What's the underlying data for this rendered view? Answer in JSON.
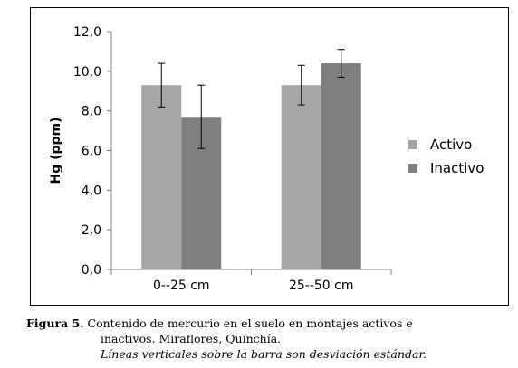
{
  "chart_data": {
    "type": "bar",
    "ylabel": "Hg (ppm)",
    "xlabel": "",
    "categories": [
      "0--25 cm",
      "25--50 cm"
    ],
    "ylim": [
      0,
      12
    ],
    "yticks": [
      "0,0",
      "2,0",
      "4,0",
      "6,0",
      "8,0",
      "10,0",
      "12,0"
    ],
    "grid": false,
    "legend_position": "right",
    "series": [
      {
        "name": "Activo",
        "color": "#a6a6a6",
        "values": [
          9.3,
          9.3
        ],
        "error_low": [
          8.2,
          8.3
        ],
        "error_high": [
          10.4,
          10.3
        ]
      },
      {
        "name": "Inactivo",
        "color": "#7f7f7f",
        "values": [
          7.7,
          10.4
        ],
        "error_low": [
          6.1,
          9.7
        ],
        "error_high": [
          9.3,
          11.1
        ]
      }
    ]
  },
  "caption": {
    "label": "Figura 5.",
    "line1": "Contenido de mercurio en el suelo en montajes activos e",
    "line2": "inactivos. Miraflores, Quinchía.",
    "line3": "Líneas verticales sobre la barra son desviación estándar."
  }
}
